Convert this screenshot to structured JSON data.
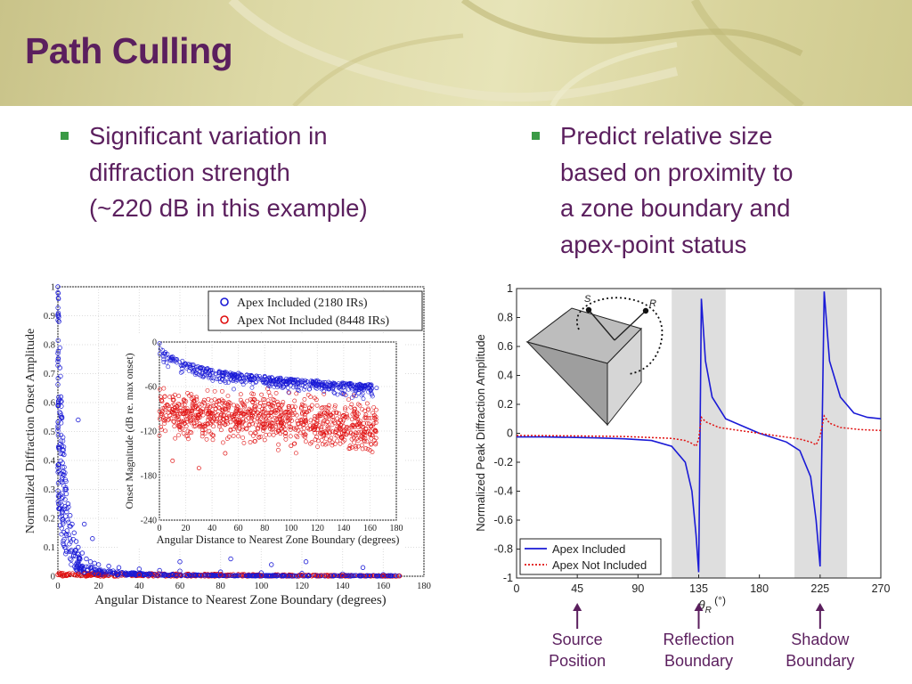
{
  "slide": {
    "title": "Path Culling",
    "bullets": [
      {
        "lines": [
          "Significant variation in",
          "diffraction strength",
          "(~220 dB in this example)"
        ]
      },
      {
        "lines": [
          "Predict relative size",
          "based on proximity to",
          "a zone boundary and",
          "apex-point status"
        ]
      }
    ]
  },
  "colors": {
    "title": "#5b1f5e",
    "bullet_marker": "#3a9a45",
    "apex_included": "#1a1ad6",
    "apex_not_included": "#e01010",
    "arrow": "#5b1f5e"
  },
  "chart_data": [
    {
      "type": "scatter",
      "xlabel": "Angular Distance to Nearest Zone Boundary (degrees)",
      "ylabel": "Normalized Diffraction Onset Amplitude",
      "xlim": [
        0,
        180
      ],
      "ylim": [
        0,
        1
      ],
      "xticks": [
        0,
        20,
        40,
        60,
        80,
        100,
        120,
        140,
        160,
        180
      ],
      "yticks": [
        0,
        0.1,
        0.2,
        0.3,
        0.4,
        0.5,
        0.6,
        0.7,
        0.8,
        0.9,
        1
      ],
      "ytick_labels": [
        "0",
        "0.1",
        "0.2",
        "0.3",
        "0.4",
        "0.5",
        "0.6",
        "0.7",
        "0.8",
        "0.9",
        "1"
      ],
      "legend_position": "top-right",
      "series": [
        {
          "name": "Apex Included (2180 IRs)",
          "color": "#1a1ad6",
          "marker": "open-circle",
          "points": [
            [
              0,
              1.0
            ],
            [
              0.5,
              0.88
            ],
            [
              1,
              0.72
            ],
            [
              1.5,
              0.62
            ],
            [
              2,
              0.55
            ],
            [
              2,
              0.45
            ],
            [
              3,
              0.42
            ],
            [
              3,
              0.35
            ],
            [
              4,
              0.3
            ],
            [
              5,
              0.25
            ],
            [
              6,
              0.21
            ],
            [
              7,
              0.18
            ],
            [
              8,
              0.15
            ],
            [
              9,
              0.12
            ],
            [
              10,
              0.1
            ],
            [
              12,
              0.08
            ],
            [
              14,
              0.06
            ],
            [
              16,
              0.05
            ],
            [
              18,
              0.045
            ],
            [
              20,
              0.04
            ],
            [
              25,
              0.035
            ],
            [
              30,
              0.03
            ],
            [
              40,
              0.025
            ],
            [
              50,
              0.02
            ],
            [
              60,
              0.018
            ],
            [
              80,
              0.015
            ],
            [
              100,
              0.012
            ],
            [
              120,
              0.01
            ],
            [
              140,
              0.008
            ],
            [
              160,
              0.006
            ],
            [
              10,
              0.54
            ],
            [
              13,
              0.18
            ],
            [
              17,
              0.13
            ],
            [
              60,
              0.05
            ],
            [
              85,
              0.06
            ],
            [
              105,
              0.04
            ],
            [
              122,
              0.05
            ],
            [
              150,
              0.03
            ]
          ]
        },
        {
          "name": "Apex Not Included (8448 IRs)",
          "color": "#e01010",
          "marker": "open-circle",
          "points": [
            [
              2,
              0.01
            ],
            [
              10,
              0.008
            ],
            [
              20,
              0.006
            ],
            [
              40,
              0.005
            ],
            [
              60,
              0.004
            ],
            [
              80,
              0.004
            ],
            [
              100,
              0.003
            ],
            [
              120,
              0.003
            ],
            [
              140,
              0.002
            ],
            [
              160,
              0.002
            ],
            [
              168,
              0.001
            ]
          ]
        }
      ]
    },
    {
      "type": "scatter",
      "inset": true,
      "xlabel": "Angular Distance to Nearest Zone Boundary (degrees)",
      "ylabel": "Onset Magnitude (dB re. max onset)",
      "xlim": [
        0,
        180
      ],
      "ylim": [
        -240,
        0
      ],
      "xticks": [
        0,
        20,
        40,
        60,
        80,
        100,
        120,
        140,
        160,
        180
      ],
      "yticks": [
        0,
        -60,
        -120,
        -180,
        -240
      ],
      "series": [
        {
          "name": "Apex Included",
          "color": "#1a1ad6",
          "points": [
            [
              0,
              -2
            ],
            [
              10,
              -20
            ],
            [
              20,
              -30
            ],
            [
              40,
              -38
            ],
            [
              60,
              -42
            ],
            [
              80,
              -46
            ],
            [
              100,
              -50
            ],
            [
              120,
              -52
            ],
            [
              140,
              -56
            ],
            [
              160,
              -58
            ],
            [
              165,
              -62
            ]
          ]
        },
        {
          "name": "Apex Not Included",
          "color": "#e01010",
          "points": [
            [
              2,
              -80
            ],
            [
              20,
              -95
            ],
            [
              40,
              -100
            ],
            [
              60,
              -105
            ],
            [
              80,
              -110
            ],
            [
              100,
              -115
            ],
            [
              120,
              -118
            ],
            [
              140,
              -120
            ],
            [
              160,
              -125
            ],
            [
              10,
              -160
            ],
            [
              30,
              -170
            ],
            [
              50,
              -150
            ],
            [
              100,
              -140
            ],
            [
              150,
              -130
            ]
          ]
        }
      ]
    },
    {
      "type": "line",
      "xlabel": "θR (°)",
      "xlabel_main": "θ",
      "xlabel_sub": "R",
      "xlabel_unit": " (°)",
      "ylabel": "Normalized Peak Diffraction Amplitude",
      "xlim": [
        0,
        270
      ],
      "ylim": [
        -1,
        1
      ],
      "xticks": [
        0,
        45,
        90,
        135,
        180,
        225,
        270
      ],
      "yticks": [
        1,
        0.8,
        0.6,
        0.4,
        0.2,
        0,
        -0.2,
        -0.4,
        -0.6,
        -0.8,
        -1
      ],
      "ytick_labels": [
        "1",
        "0.8",
        "0.6",
        "0.4",
        "0.2",
        "0",
        "-0.2",
        "-0.4",
        "-0.6",
        "-0.8",
        "-1"
      ],
      "shaded_zones": [
        [
          115,
          155
        ],
        [
          206,
          245
        ]
      ],
      "legend_position": "bottom-left",
      "series": [
        {
          "name": "Apex Included",
          "color": "#1a1ad6",
          "style": "solid",
          "x": [
            0,
            20,
            40,
            60,
            80,
            100,
            115,
            125,
            130,
            133,
            135,
            137,
            140,
            145,
            155,
            170,
            180,
            190,
            200,
            210,
            218,
            222,
            225,
            228,
            232,
            240,
            250,
            260,
            270
          ],
          "y": [
            -0.025,
            -0.025,
            -0.028,
            -0.032,
            -0.038,
            -0.05,
            -0.09,
            -0.2,
            -0.4,
            -0.7,
            -0.96,
            0.93,
            0.5,
            0.25,
            0.1,
            0.04,
            0.0,
            -0.03,
            -0.06,
            -0.12,
            -0.3,
            -0.6,
            -0.92,
            0.98,
            0.5,
            0.25,
            0.14,
            0.11,
            0.1
          ]
        },
        {
          "name": "Apex Not Included",
          "color": "#e01010",
          "style": "dotted",
          "x": [
            0,
            40,
            80,
            115,
            125,
            130,
            133,
            135,
            137,
            140,
            150,
            165,
            180,
            195,
            210,
            218,
            222,
            225,
            228,
            232,
            240,
            255,
            270
          ],
          "y": [
            -0.015,
            -0.018,
            -0.022,
            -0.035,
            -0.05,
            -0.07,
            -0.09,
            -0.04,
            0.11,
            0.08,
            0.04,
            0.02,
            0.0,
            -0.02,
            -0.04,
            -0.06,
            -0.08,
            -0.02,
            0.12,
            0.07,
            0.04,
            0.025,
            0.02
          ]
        }
      ],
      "inset_diagram_labels": {
        "source": "S",
        "receiver": "R"
      }
    }
  ],
  "boundary_labels": [
    {
      "lines": [
        "Source",
        "Position"
      ],
      "x": 45
    },
    {
      "lines": [
        "Reflection",
        "Boundary"
      ],
      "x": 135
    },
    {
      "lines": [
        "Shadow",
        "Boundary"
      ],
      "x": 225
    }
  ]
}
